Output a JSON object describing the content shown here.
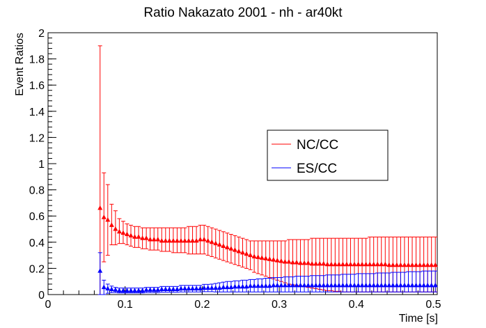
{
  "chart_data": {
    "type": "scatter",
    "title": "Ratio Nakazato 2001 - nh - ar40kt",
    "xlabel": "Time [s]",
    "ylabel": "Event Ratios",
    "xlim": [
      0,
      0.505
    ],
    "ylim": [
      0,
      2
    ],
    "x_ticks": [
      "0",
      "0.1",
      "0.2",
      "0.3",
      "0.4",
      "0.5"
    ],
    "y_ticks": [
      "0",
      "0.2",
      "0.4",
      "0.6",
      "0.8",
      "1",
      "1.2",
      "1.4",
      "1.6",
      "1.8",
      "2"
    ],
    "grid": false,
    "legend_position": "center-right",
    "series": [
      {
        "name": "NC/CC",
        "color": "#ff0000",
        "marker": "triangle-up",
        "x": [
          0.0675,
          0.0725,
          0.0775,
          0.0825,
          0.0875,
          0.0925,
          0.0975,
          0.1025,
          0.1075,
          0.1125,
          0.1175,
          0.1225,
          0.1275,
          0.1325,
          0.1375,
          0.1425,
          0.1475,
          0.1525,
          0.1575,
          0.1625,
          0.1675,
          0.1725,
          0.1775,
          0.1825,
          0.1875,
          0.1925,
          0.1975,
          0.2025,
          0.2075,
          0.2125,
          0.2175,
          0.2225,
          0.2275,
          0.2325,
          0.2375,
          0.2425,
          0.2475,
          0.2525,
          0.2575,
          0.2625,
          0.2675,
          0.2725,
          0.2775,
          0.2825,
          0.2875,
          0.2925,
          0.2975,
          0.3025,
          0.3075,
          0.3125,
          0.3175,
          0.3225,
          0.3275,
          0.3325,
          0.3375,
          0.3425,
          0.3475,
          0.3525,
          0.3575,
          0.3625,
          0.3675,
          0.3725,
          0.3775,
          0.3825,
          0.3875,
          0.3925,
          0.3975,
          0.4025,
          0.4075,
          0.4125,
          0.4175,
          0.4225,
          0.4275,
          0.4325,
          0.4375,
          0.4425,
          0.4475,
          0.4525,
          0.4575,
          0.4625,
          0.4675,
          0.4725,
          0.4775,
          0.4825,
          0.4875,
          0.4925,
          0.4975,
          0.5025
        ],
        "y": [
          0.66,
          0.59,
          0.57,
          0.53,
          0.5,
          0.48,
          0.47,
          0.46,
          0.45,
          0.44,
          0.44,
          0.43,
          0.43,
          0.42,
          0.42,
          0.42,
          0.41,
          0.41,
          0.41,
          0.41,
          0.41,
          0.41,
          0.41,
          0.41,
          0.41,
          0.41,
          0.42,
          0.42,
          0.41,
          0.4,
          0.39,
          0.38,
          0.37,
          0.36,
          0.35,
          0.34,
          0.33,
          0.32,
          0.31,
          0.3,
          0.29,
          0.285,
          0.28,
          0.275,
          0.27,
          0.265,
          0.26,
          0.255,
          0.25,
          0.25,
          0.245,
          0.245,
          0.24,
          0.24,
          0.24,
          0.235,
          0.235,
          0.235,
          0.235,
          0.23,
          0.23,
          0.23,
          0.23,
          0.23,
          0.23,
          0.23,
          0.23,
          0.23,
          0.23,
          0.23,
          0.23,
          0.23,
          0.23,
          0.23,
          0.23,
          0.225,
          0.225,
          0.225,
          0.225,
          0.225,
          0.225,
          0.225,
          0.225,
          0.225,
          0.225,
          0.225,
          0.225,
          0.225
        ],
        "y_low": [
          0.0,
          0.25,
          0.3,
          0.38,
          0.38,
          0.39,
          0.39,
          0.38,
          0.37,
          0.36,
          0.36,
          0.35,
          0.35,
          0.34,
          0.34,
          0.34,
          0.33,
          0.33,
          0.33,
          0.32,
          0.32,
          0.32,
          0.32,
          0.31,
          0.31,
          0.31,
          0.31,
          0.31,
          0.3,
          0.29,
          0.28,
          0.27,
          0.26,
          0.25,
          0.24,
          0.23,
          0.22,
          0.21,
          0.2,
          0.19,
          0.17,
          0.16,
          0.15,
          0.14,
          0.13,
          0.12,
          0.11,
          0.1,
          0.09,
          0.08,
          0.075,
          0.07,
          0.065,
          0.06,
          0.055,
          0.05,
          0.045,
          0.04,
          0.035,
          0.03,
          0.03,
          0.025,
          0.025,
          0.02,
          0.02,
          0.02,
          0.02,
          0.02,
          0.02,
          0.02,
          0.02,
          0.02,
          0.02,
          0.02,
          0.02,
          0.02,
          0.02,
          0.02,
          0.02,
          0.02,
          0.02,
          0.02,
          0.02,
          0.02,
          0.02,
          0.02,
          0.02,
          0.02
        ],
        "y_high": [
          1.9,
          0.93,
          0.84,
          0.69,
          0.64,
          0.58,
          0.56,
          0.54,
          0.53,
          0.52,
          0.52,
          0.51,
          0.51,
          0.51,
          0.51,
          0.51,
          0.51,
          0.51,
          0.51,
          0.51,
          0.51,
          0.51,
          0.51,
          0.52,
          0.52,
          0.52,
          0.53,
          0.53,
          0.52,
          0.51,
          0.5,
          0.49,
          0.48,
          0.47,
          0.46,
          0.45,
          0.44,
          0.43,
          0.42,
          0.41,
          0.41,
          0.41,
          0.41,
          0.41,
          0.41,
          0.41,
          0.41,
          0.41,
          0.41,
          0.42,
          0.42,
          0.42,
          0.42,
          0.42,
          0.42,
          0.43,
          0.43,
          0.43,
          0.43,
          0.43,
          0.43,
          0.43,
          0.43,
          0.43,
          0.43,
          0.43,
          0.43,
          0.43,
          0.43,
          0.43,
          0.44,
          0.44,
          0.44,
          0.44,
          0.44,
          0.44,
          0.44,
          0.44,
          0.44,
          0.44,
          0.44,
          0.44,
          0.44,
          0.44,
          0.44,
          0.44,
          0.44,
          0.44
        ]
      },
      {
        "name": "ES/CC",
        "color": "#0000ff",
        "marker": "triangle-up",
        "x": [
          0.0675,
          0.0725,
          0.0775,
          0.0825,
          0.0875,
          0.0925,
          0.0975,
          0.1025,
          0.1075,
          0.1125,
          0.1175,
          0.1225,
          0.1275,
          0.1325,
          0.1375,
          0.1425,
          0.1475,
          0.1525,
          0.1575,
          0.1625,
          0.1675,
          0.1725,
          0.1775,
          0.1825,
          0.1875,
          0.1925,
          0.1975,
          0.2025,
          0.2075,
          0.2125,
          0.2175,
          0.2225,
          0.2275,
          0.2325,
          0.2375,
          0.2425,
          0.2475,
          0.2525,
          0.2575,
          0.2625,
          0.2675,
          0.2725,
          0.2775,
          0.2825,
          0.2875,
          0.2925,
          0.2975,
          0.3025,
          0.3075,
          0.3125,
          0.3175,
          0.3225,
          0.3275,
          0.3325,
          0.3375,
          0.3425,
          0.3475,
          0.3525,
          0.3575,
          0.3625,
          0.3675,
          0.3725,
          0.3775,
          0.3825,
          0.3875,
          0.3925,
          0.3975,
          0.4025,
          0.4075,
          0.4125,
          0.4175,
          0.4225,
          0.4275,
          0.4325,
          0.4375,
          0.4425,
          0.4475,
          0.4525,
          0.4575,
          0.4625,
          0.4675,
          0.4725,
          0.4775,
          0.4825,
          0.4875,
          0.4925,
          0.4975,
          0.5025
        ],
        "y": [
          0.18,
          0.055,
          0.045,
          0.04,
          0.035,
          0.03,
          0.03,
          0.03,
          0.03,
          0.03,
          0.03,
          0.03,
          0.035,
          0.035,
          0.035,
          0.035,
          0.04,
          0.04,
          0.04,
          0.04,
          0.04,
          0.045,
          0.045,
          0.045,
          0.045,
          0.045,
          0.045,
          0.05,
          0.05,
          0.05,
          0.05,
          0.05,
          0.055,
          0.055,
          0.055,
          0.06,
          0.06,
          0.06,
          0.06,
          0.065,
          0.065,
          0.065,
          0.065,
          0.065,
          0.065,
          0.07,
          0.07,
          0.07,
          0.07,
          0.07,
          0.07,
          0.07,
          0.07,
          0.07,
          0.07,
          0.07,
          0.07,
          0.07,
          0.07,
          0.07,
          0.07,
          0.07,
          0.07,
          0.07,
          0.07,
          0.07,
          0.07,
          0.07,
          0.07,
          0.07,
          0.07,
          0.07,
          0.07,
          0.07,
          0.07,
          0.07,
          0.07,
          0.07,
          0.07,
          0.07,
          0.07,
          0.07,
          0.07,
          0.07,
          0.07,
          0.07,
          0.07,
          0.07
        ],
        "y_low": [
          0.0,
          0.0,
          0.01,
          0.015,
          0.015,
          0.012,
          0.012,
          0.012,
          0.012,
          0.012,
          0.012,
          0.012,
          0.015,
          0.015,
          0.015,
          0.015,
          0.018,
          0.018,
          0.018,
          0.018,
          0.018,
          0.02,
          0.02,
          0.02,
          0.02,
          0.02,
          0.02,
          0.022,
          0.022,
          0.022,
          0.02,
          0.02,
          0.02,
          0.02,
          0.02,
          0.02,
          0.02,
          0.02,
          0.02,
          0.02,
          0.02,
          0.02,
          0.02,
          0.02,
          0.02,
          0.02,
          0.02,
          0.02,
          0.02,
          0.02,
          0.02,
          0.02,
          0.02,
          0.02,
          0.02,
          0.02,
          0.02,
          0.02,
          0.02,
          0.02,
          0.02,
          0.02,
          0.02,
          0.02,
          0.02,
          0.02,
          0.02,
          0.02,
          0.02,
          0.02,
          0.02,
          0.02,
          0.02,
          0.02,
          0.02,
          0.02,
          0.02,
          0.02,
          0.02,
          0.02,
          0.02,
          0.02,
          0.02,
          0.02,
          0.02,
          0.02,
          0.02,
          0.02
        ],
        "y_high": [
          0.32,
          0.11,
          0.08,
          0.065,
          0.055,
          0.05,
          0.05,
          0.05,
          0.05,
          0.05,
          0.05,
          0.05,
          0.055,
          0.055,
          0.055,
          0.055,
          0.062,
          0.062,
          0.062,
          0.062,
          0.062,
          0.07,
          0.07,
          0.07,
          0.07,
          0.07,
          0.07,
          0.078,
          0.078,
          0.08,
          0.085,
          0.09,
          0.095,
          0.1,
          0.1,
          0.105,
          0.105,
          0.11,
          0.11,
          0.115,
          0.115,
          0.12,
          0.12,
          0.125,
          0.125,
          0.13,
          0.13,
          0.13,
          0.135,
          0.135,
          0.135,
          0.14,
          0.14,
          0.14,
          0.14,
          0.145,
          0.145,
          0.145,
          0.145,
          0.15,
          0.15,
          0.15,
          0.15,
          0.155,
          0.155,
          0.155,
          0.155,
          0.16,
          0.16,
          0.16,
          0.16,
          0.16,
          0.165,
          0.165,
          0.165,
          0.165,
          0.17,
          0.17,
          0.17,
          0.17,
          0.175,
          0.175,
          0.175,
          0.175,
          0.18,
          0.18,
          0.18,
          0.18
        ]
      }
    ]
  }
}
